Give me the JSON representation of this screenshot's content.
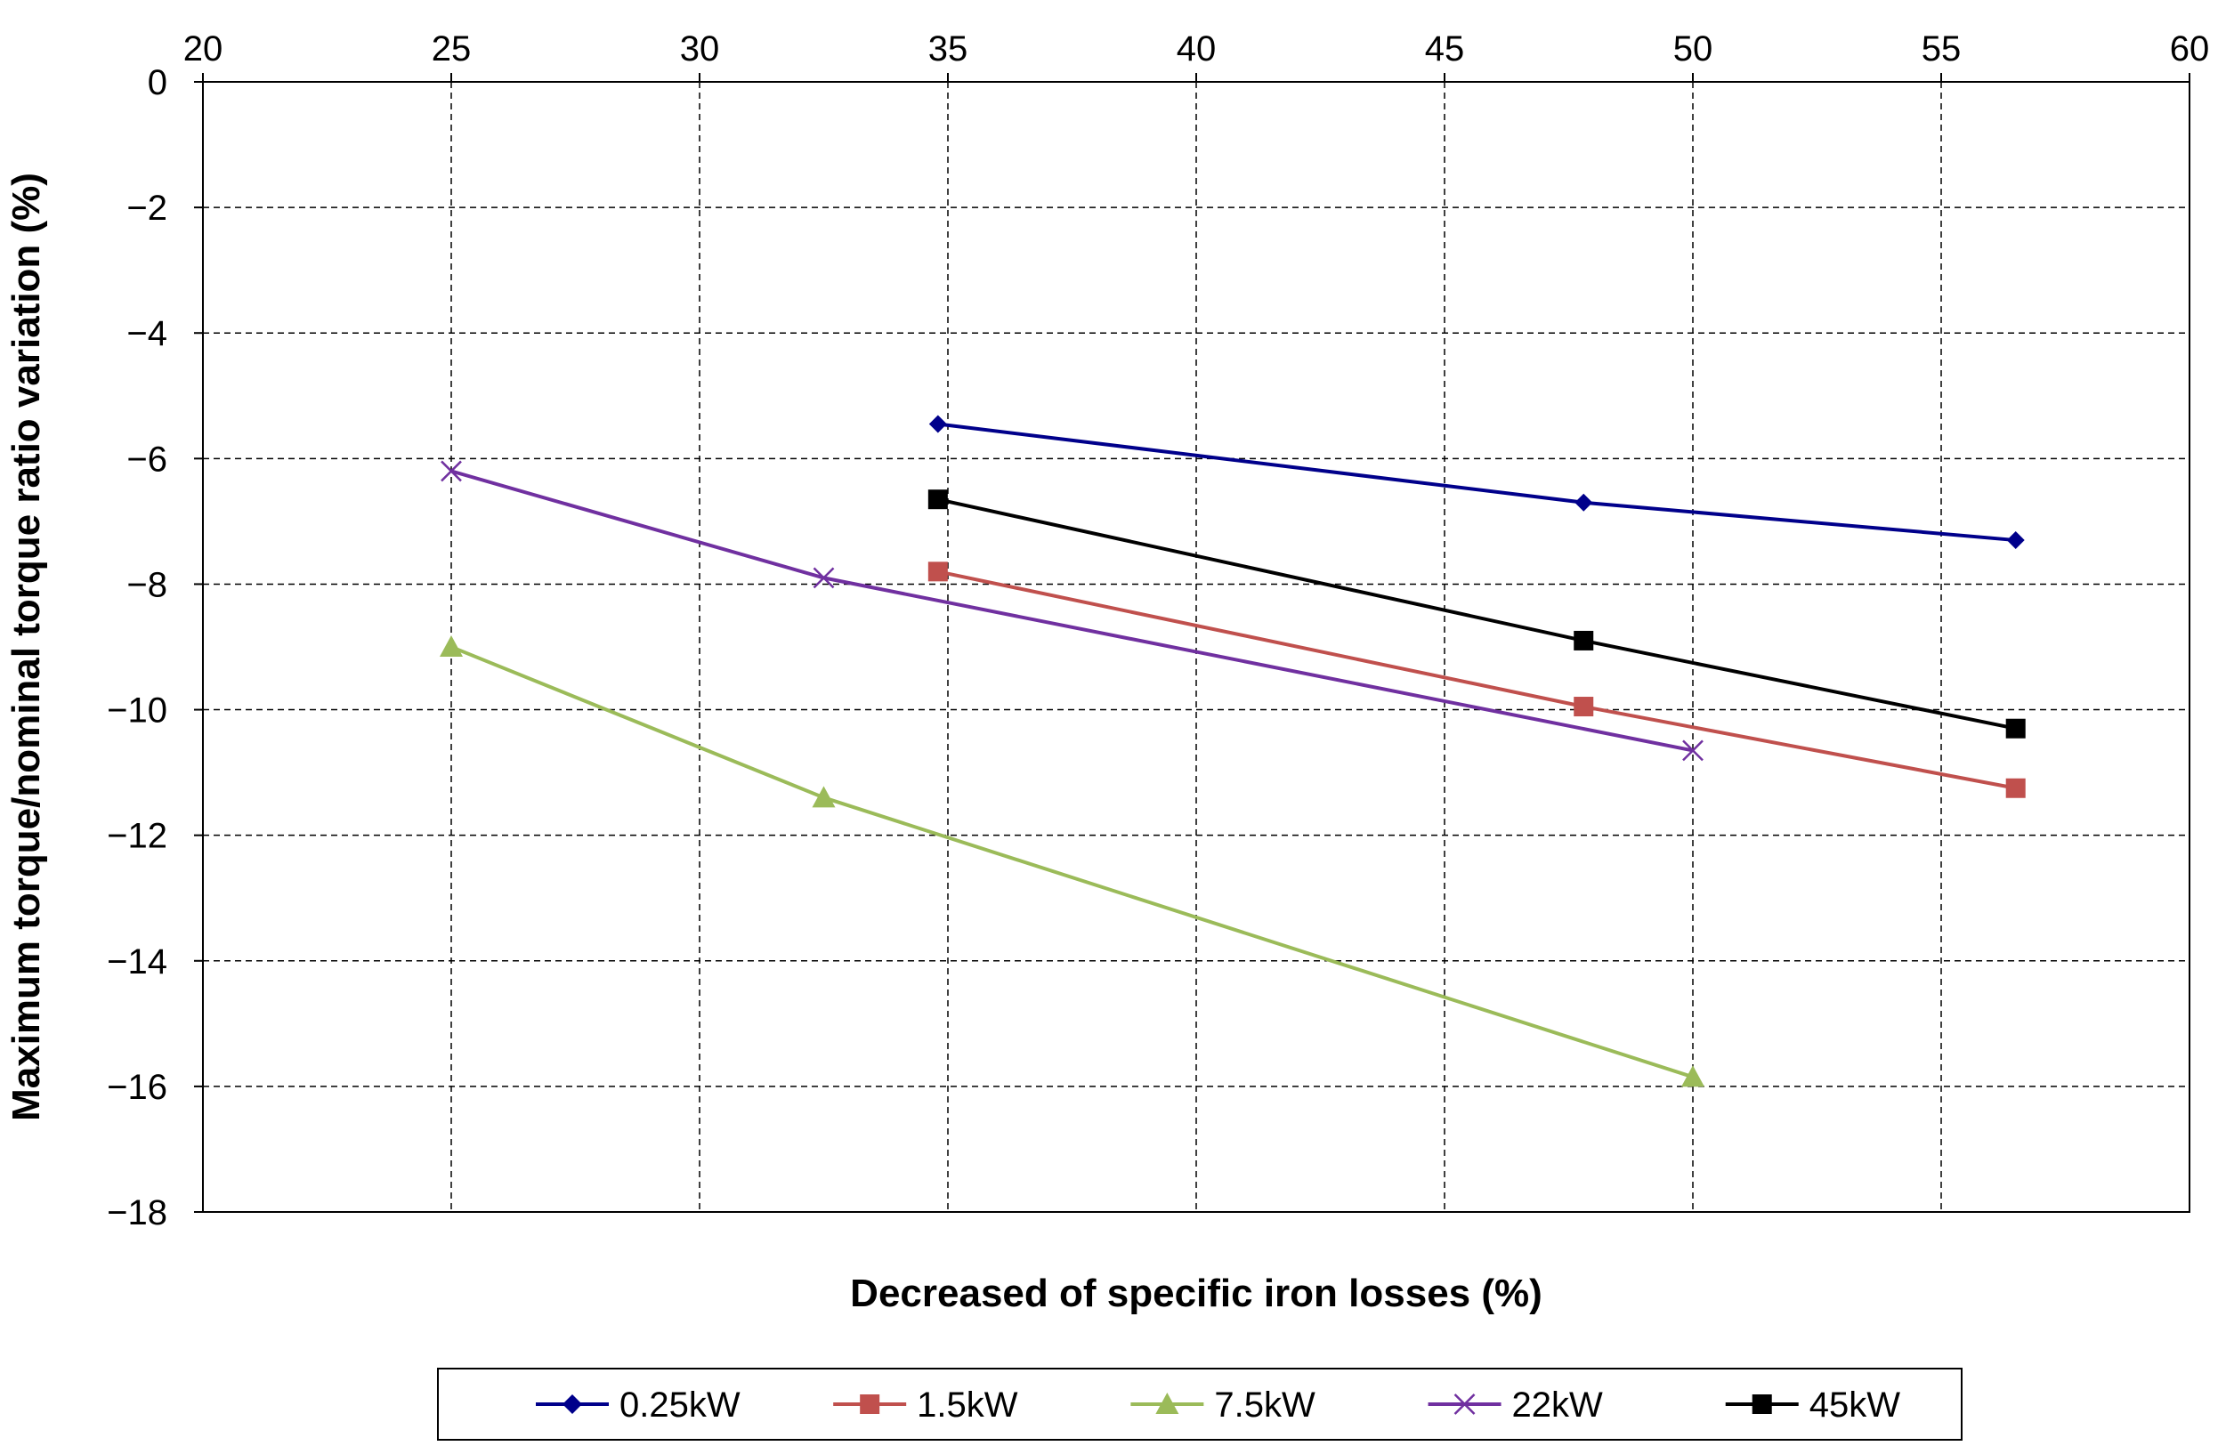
{
  "chart_data": {
    "type": "line",
    "title": "",
    "xlabel": "Decreased of specific iron losses (%)",
    "ylabel": "Maximum torque/nominal torque ratio variation (%)",
    "xlim": [
      20,
      60
    ],
    "ylim": [
      -18,
      0
    ],
    "x_ticks": [
      20,
      25,
      30,
      35,
      40,
      45,
      50,
      55,
      60
    ],
    "y_ticks": [
      0,
      -2,
      -4,
      -6,
      -8,
      -10,
      -12,
      -14,
      -16,
      -18
    ],
    "x_tick_labels": [
      "20",
      "25",
      "30",
      "35",
      "40",
      "45",
      "50",
      "55",
      "60"
    ],
    "y_tick_labels": [
      "0",
      "−2",
      "−4",
      "−6",
      "−8",
      "−10",
      "−12",
      "−14",
      "−16",
      "−18"
    ],
    "x_axis_position": "top",
    "grid": true,
    "legend_position": "bottom",
    "series": [
      {
        "name": "0.25kW",
        "color": "#00008B",
        "marker": "diamond",
        "x": [
          34.8,
          47.8,
          56.5
        ],
        "y": [
          -5.45,
          -6.7,
          -7.3
        ]
      },
      {
        "name": "1.5kW",
        "color": "#C0504D",
        "marker": "square",
        "x": [
          34.8,
          47.8,
          56.5
        ],
        "y": [
          -7.8,
          -9.95,
          -11.25
        ]
      },
      {
        "name": "7.5kW",
        "color": "#9BBB59",
        "marker": "triangle",
        "x": [
          25,
          32.5,
          50
        ],
        "y": [
          -9,
          -11.4,
          -15.85
        ]
      },
      {
        "name": "22kW",
        "color": "#7030A0",
        "marker": "x",
        "x": [
          25,
          32.5,
          50
        ],
        "y": [
          -6.2,
          -7.9,
          -10.65
        ]
      },
      {
        "name": "45kW",
        "color": "#000000",
        "marker": "square",
        "x": [
          34.8,
          47.8,
          56.5
        ],
        "y": [
          -6.65,
          -8.9,
          -10.3
        ]
      }
    ]
  }
}
